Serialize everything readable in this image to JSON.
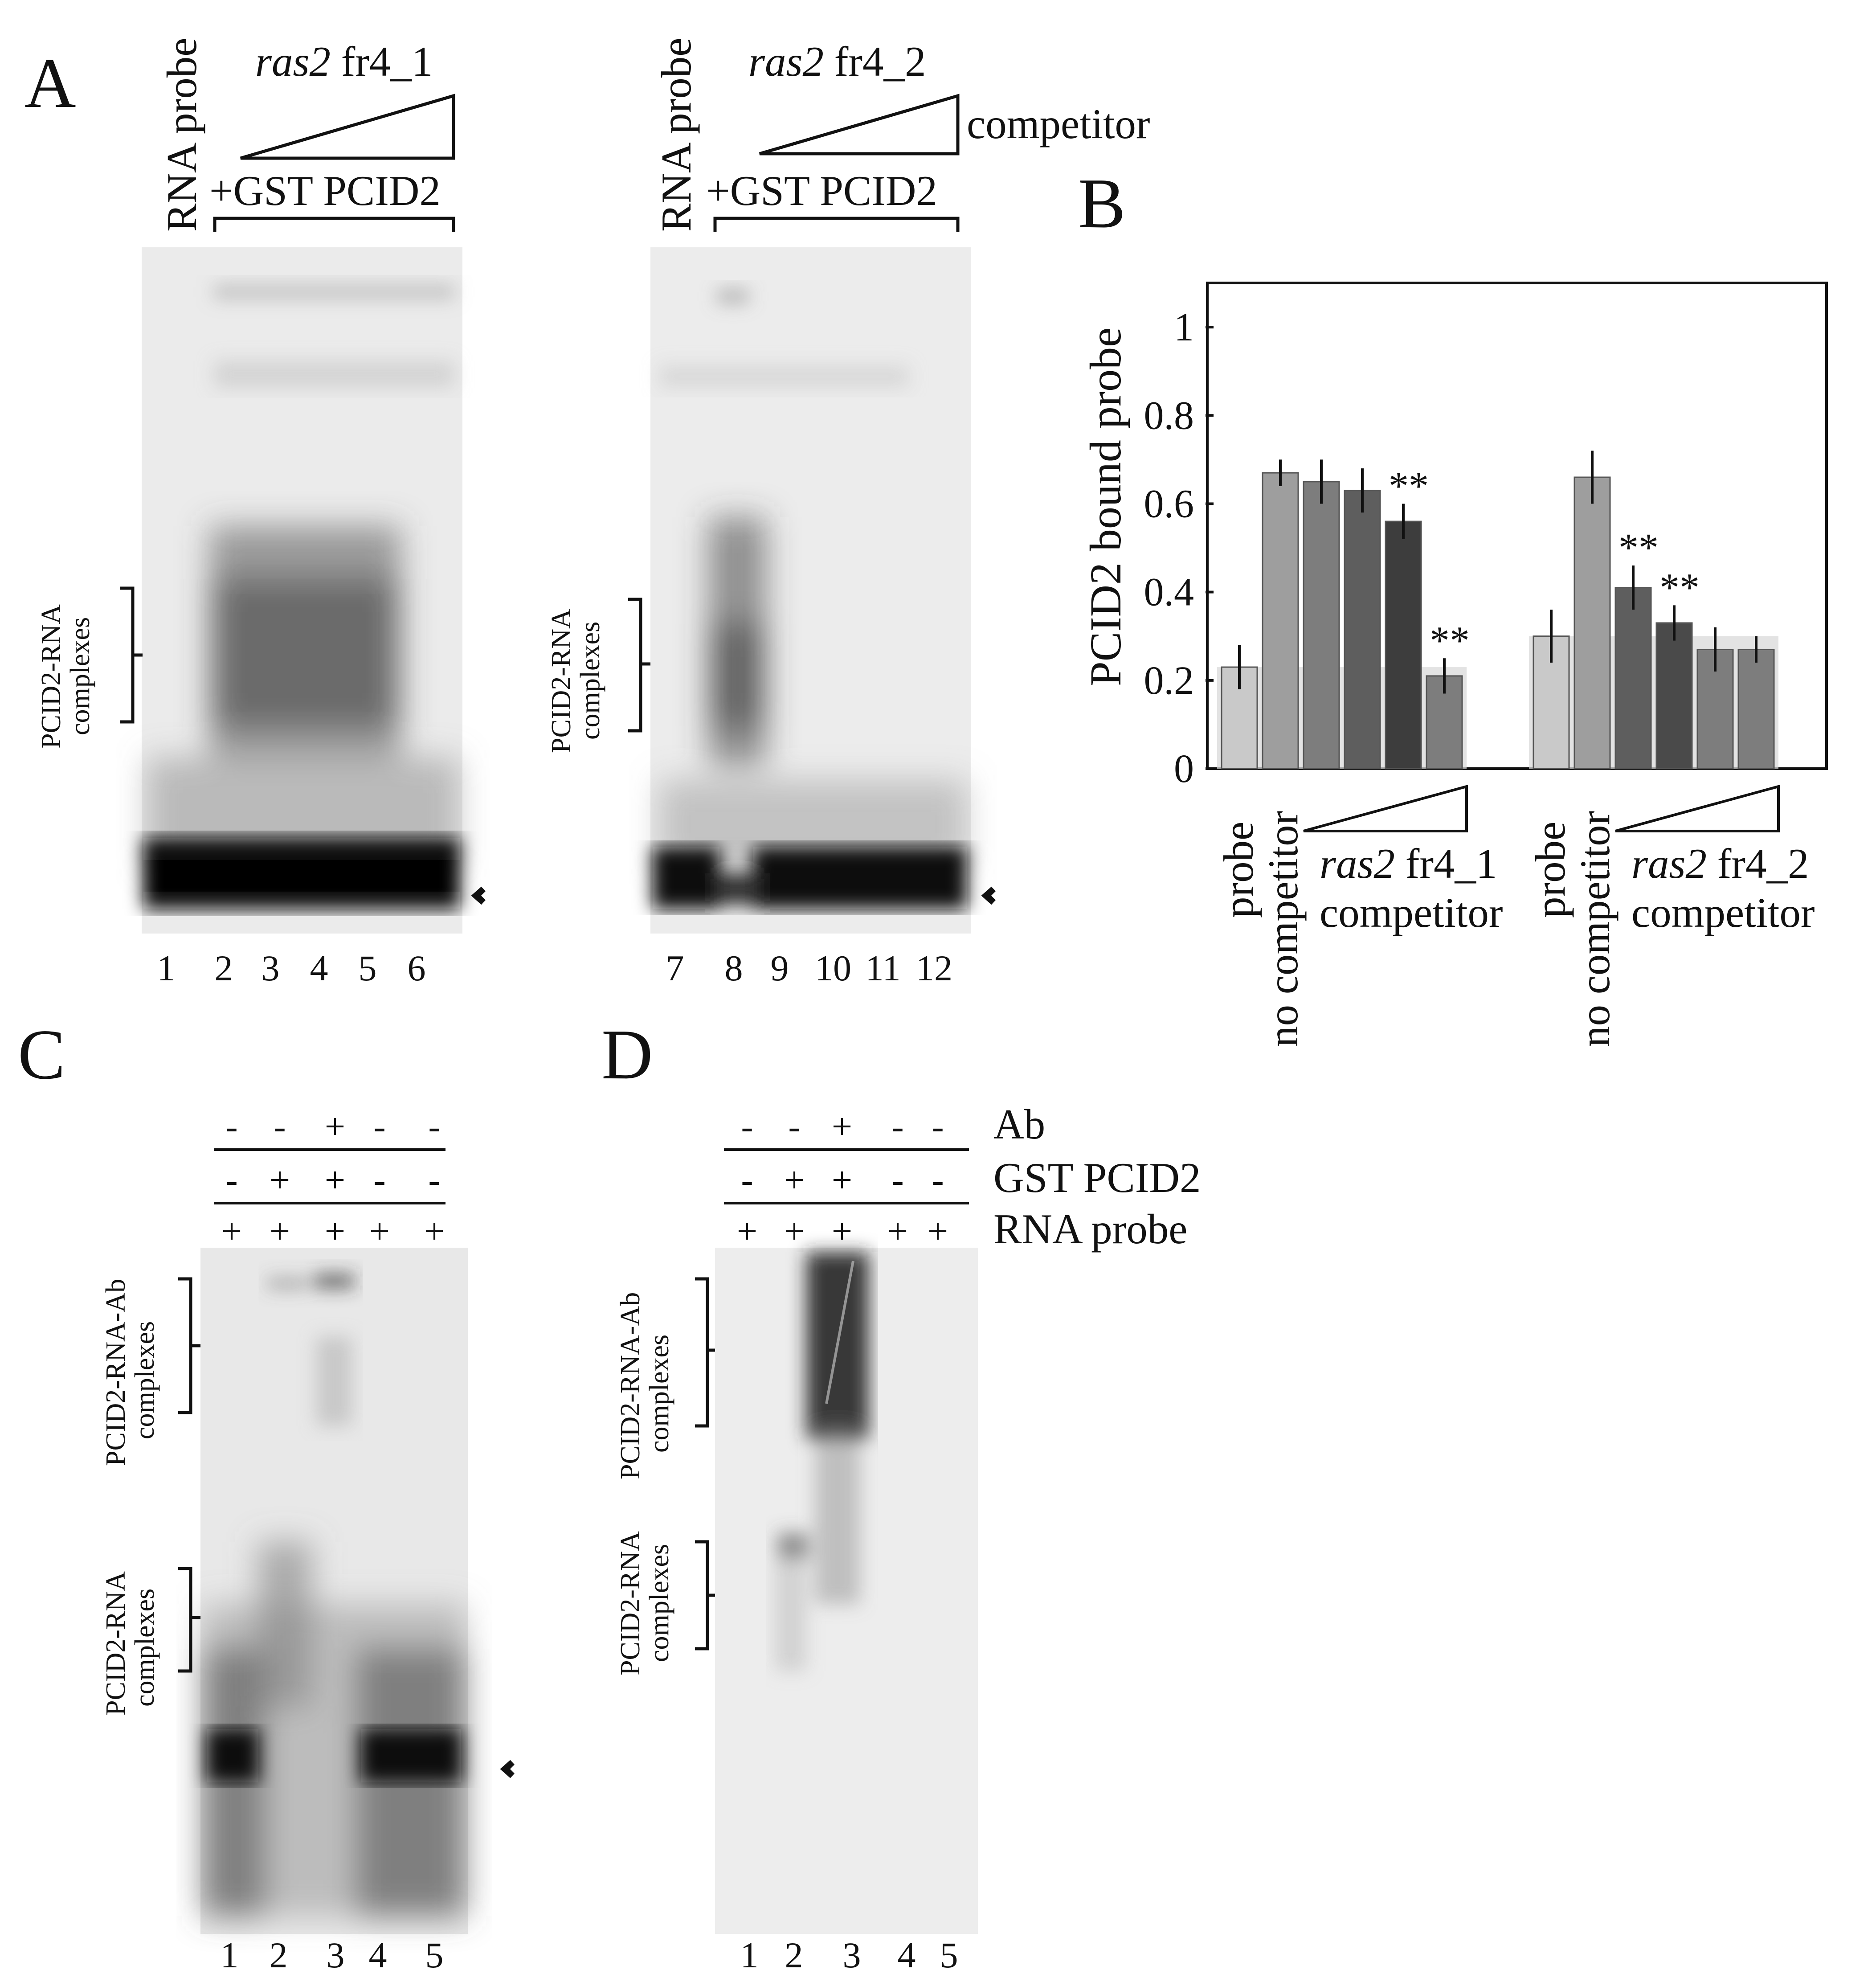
{
  "panels": {
    "A": {
      "letter": "A",
      "gel1": {
        "probe_label": "RNA probe",
        "competitor_italic": "ras2",
        "competitor_rest": " fr4_1",
        "protein_label": "+GST PCID2",
        "complex_label_1": "PCID2-RNA",
        "complex_label_2": "complexes",
        "lanes": [
          "1",
          "2",
          "3",
          "4",
          "5",
          "6"
        ]
      },
      "gel2": {
        "probe_label": "RNA probe",
        "competitor_italic": "ras2",
        "competitor_rest": " fr4_2",
        "competitor_word": "competitor",
        "protein_label": "+GST PCID2",
        "complex_label_1": "PCID2-RNA",
        "complex_label_2": "complexes",
        "lanes": [
          "7",
          "8",
          "9",
          "10",
          "11",
          "12"
        ]
      }
    },
    "B": {
      "letter": "B"
    },
    "C": {
      "letter": "C",
      "rows": [
        {
          "signs": [
            "-",
            "-",
            "+",
            "-",
            "-"
          ]
        },
        {
          "signs": [
            "-",
            "+",
            "+",
            "-",
            "-"
          ]
        },
        {
          "signs": [
            "+",
            "+",
            "+",
            "+",
            "+"
          ]
        }
      ],
      "upper_label_1": "PCID2-RNA-Ab",
      "upper_label_2": "complexes",
      "lower_label_1": "PCID2-RNA",
      "lower_label_2": "complexes",
      "lanes": [
        "1",
        "2",
        "3",
        "4",
        "5"
      ]
    },
    "D": {
      "letter": "D",
      "rows": [
        {
          "signs": [
            "-",
            "-",
            "+",
            "-",
            "-"
          ],
          "label": "Ab"
        },
        {
          "signs": [
            "-",
            "+",
            "+",
            "-",
            "-"
          ],
          "label": "GST PCID2"
        },
        {
          "signs": [
            "+",
            "+",
            "+",
            "+",
            "+"
          ],
          "label": "RNA probe"
        }
      ],
      "upper_label_1": "PCID2-RNA-Ab",
      "upper_label_2": "complexes",
      "lower_label_1": "PCID2-RNA",
      "lower_label_2": "complexes",
      "lanes": [
        "1",
        "2",
        "3",
        "4",
        "5"
      ]
    }
  },
  "chart_data": {
    "type": "bar",
    "ylabel": "PCID2 bound probe",
    "ylim": [
      0,
      1.1
    ],
    "yticks": [
      "0",
      "0.2",
      "0.4",
      "0.6",
      "0.8",
      "1"
    ],
    "groups": [
      {
        "bars": [
          {
            "value": 0.23,
            "err": 0.05,
            "color": "#c9c9c9",
            "sig": ""
          },
          {
            "value": 0.67,
            "err": 0.03,
            "color": "#9e9e9e",
            "sig": ""
          },
          {
            "value": 0.65,
            "err": 0.05,
            "color": "#7d7d7d",
            "sig": ""
          },
          {
            "value": 0.63,
            "err": 0.05,
            "color": "#5e5e5e",
            "sig": ""
          },
          {
            "value": 0.56,
            "err": 0.04,
            "color": "#3d3d3d",
            "sig": "**"
          },
          {
            "value": 0.21,
            "err": 0.04,
            "color": "#7d7d7d",
            "sig": "**"
          }
        ],
        "baseline": 0.23,
        "labels": {
          "probe": "probe",
          "nocomp": "no competitor",
          "italic": "ras2",
          "rest": " fr4_1",
          "comp": "competitor"
        }
      },
      {
        "bars": [
          {
            "value": 0.3,
            "err": 0.06,
            "color": "#c9c9c9",
            "sig": ""
          },
          {
            "value": 0.66,
            "err": 0.06,
            "color": "#9e9e9e",
            "sig": ""
          },
          {
            "value": 0.41,
            "err": 0.05,
            "color": "#5e5e5e",
            "sig": "**"
          },
          {
            "value": 0.33,
            "err": 0.04,
            "color": "#4a4a4a",
            "sig": "**"
          },
          {
            "value": 0.27,
            "err": 0.05,
            "color": "#7d7d7d",
            "sig": ""
          },
          {
            "value": 0.27,
            "err": 0.03,
            "color": "#7d7d7d",
            "sig": ""
          }
        ],
        "baseline": 0.3,
        "labels": {
          "probe": "probe",
          "nocomp": "no competitor",
          "italic": "ras2",
          "rest": " fr4_2",
          "comp": "competitor"
        }
      }
    ]
  }
}
